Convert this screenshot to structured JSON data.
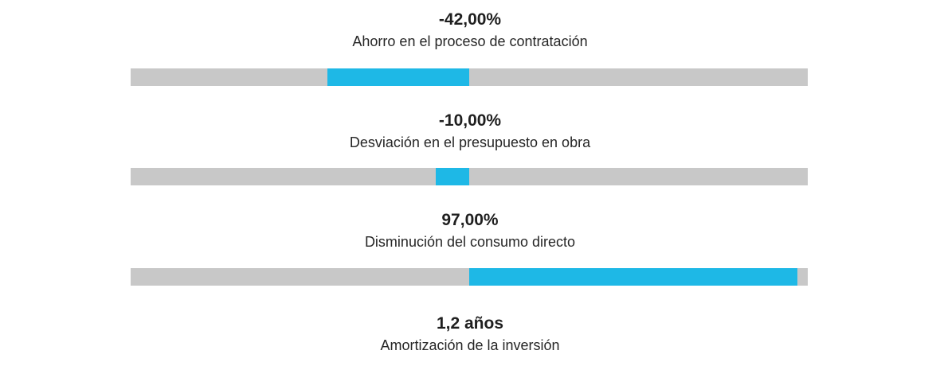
{
  "chart_data": {
    "type": "bar",
    "orientation": "horizontal-diverging",
    "xlim": [
      -100,
      100
    ],
    "baseline": 0,
    "bar_color": "#1eb8e6",
    "track_color": "#c8c8c8",
    "metrics": [
      {
        "value_text": "-42,00%",
        "label": "Ahorro en el proceso de contratación",
        "value": -42
      },
      {
        "value_text": "-10,00%",
        "label": "Desviación en el presupuesto en obra",
        "value": -10
      },
      {
        "value_text": "97,00%",
        "label": "Disminución del consumo directo",
        "value": 97
      },
      {
        "value_text": "1,2 años",
        "label": "Amortización de la inversión"
      }
    ]
  }
}
